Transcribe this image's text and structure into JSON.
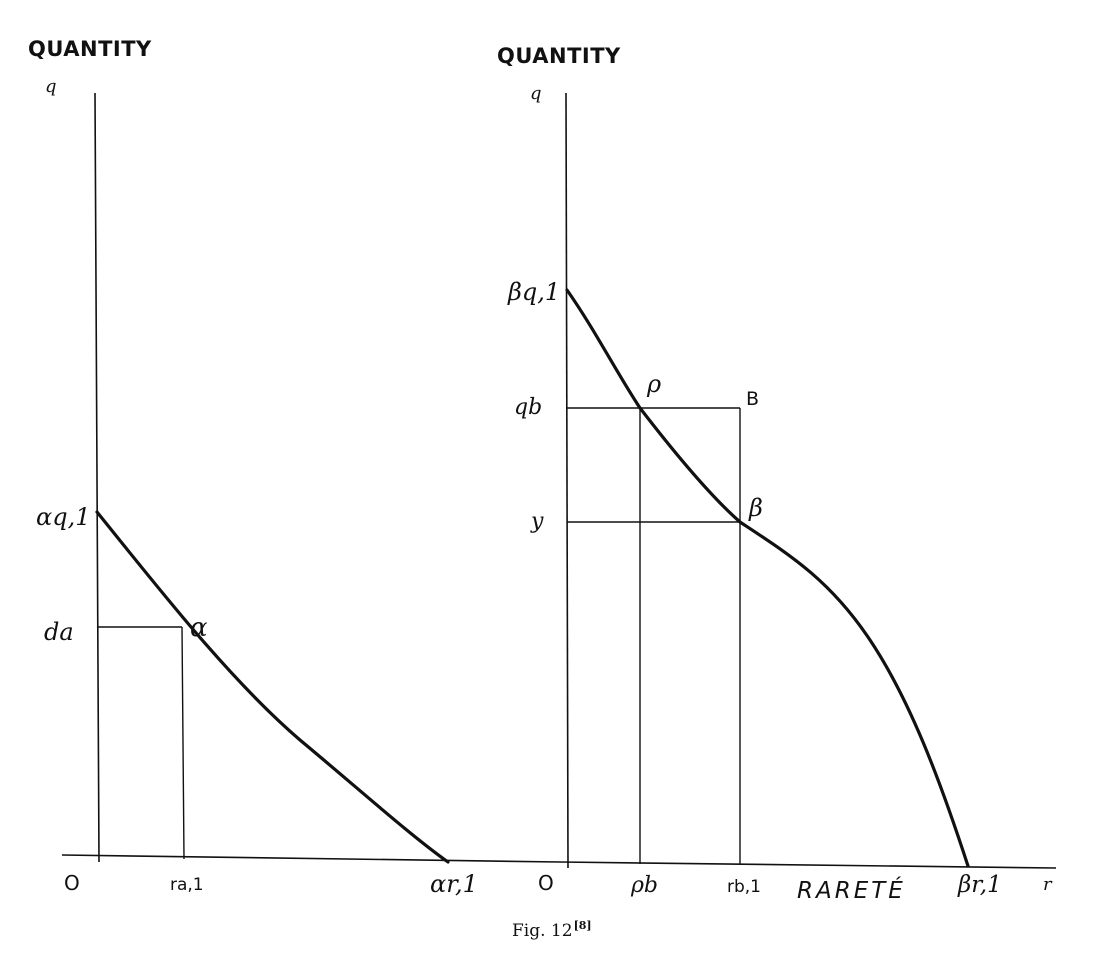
{
  "left_panel": {
    "axis_title": "QUANTITY",
    "q_axis": "q",
    "origin": "O",
    "curve_intercept_q": "αq,1",
    "level_label": "da",
    "point_label": "α",
    "r_tick": "ra,1",
    "curve_intercept_r": "αr,1"
  },
  "right_panel": {
    "axis_title": "QUANTITY",
    "q_axis": "q",
    "origin": "O",
    "curve_intercept_q": "βq,1",
    "level_qb": "qb",
    "level_y": "y",
    "point_rho": "ρ",
    "point_B": "B",
    "point_beta": "β",
    "r_tick_rho": "ρb",
    "r_tick_rb": "rb,1",
    "curve_intercept_r": "βr,1",
    "r_axis": "r",
    "x_axis_title": "RARETÉ"
  },
  "caption": {
    "text": "Fig. 12",
    "superscript": "[8]"
  }
}
